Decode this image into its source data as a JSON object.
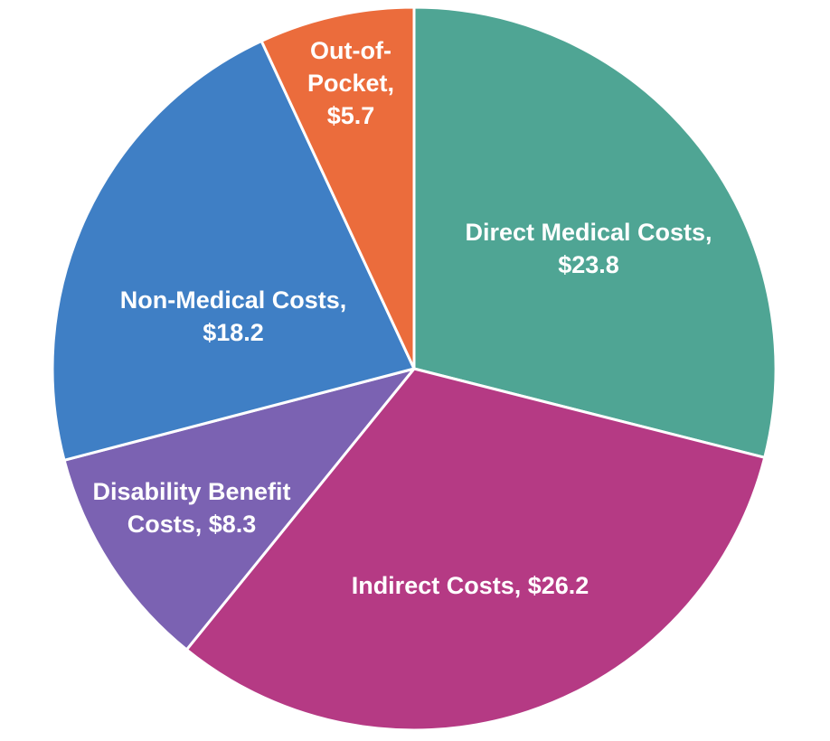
{
  "chart_data": {
    "type": "pie",
    "start_angle": "top",
    "direction": "clockwise",
    "slices": [
      {
        "label": "Direct Medical Costs",
        "value": 23.8,
        "display": "Direct Medical Costs,\n$23.8",
        "color": "#4FA594"
      },
      {
        "label": "Indirect Costs",
        "value": 26.2,
        "display": "Indirect Costs, $26.2",
        "color": "#B53A84"
      },
      {
        "label": "Disability Benefit Costs",
        "value": 8.3,
        "display": "Disability Benefit\nCosts, $8.3",
        "color": "#7B62B2"
      },
      {
        "label": "Non-Medical Costs",
        "value": 18.2,
        "display": "Non-Medical Costs,\n$18.2",
        "color": "#3F7FC5"
      },
      {
        "label": "Out-of-Pocket",
        "value": 5.7,
        "display": "Out-of-\nPocket,\n$5.7",
        "color": "#EB6C3C"
      }
    ]
  }
}
